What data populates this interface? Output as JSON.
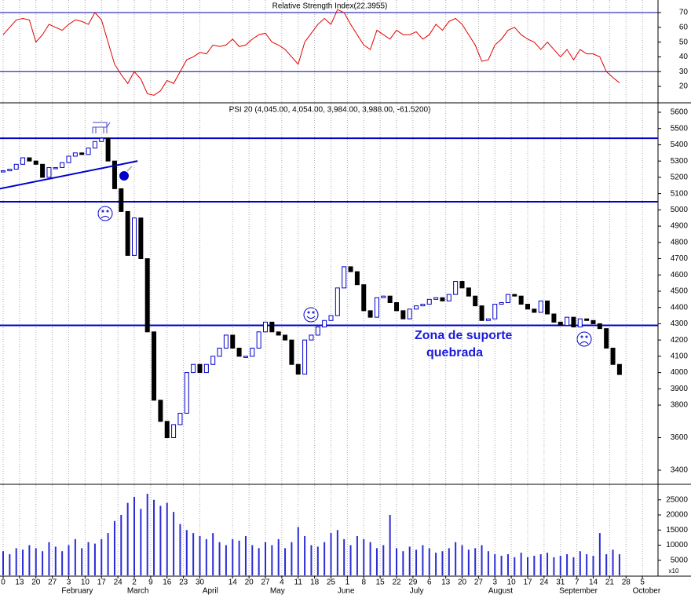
{
  "chart_data": [
    {
      "type": "line",
      "title": "Relative Strength Index(22.3955)",
      "color": "#e00000",
      "level_color": "#0000aa",
      "values": [
        55,
        60,
        65,
        66,
        65,
        50,
        55,
        62,
        60,
        58,
        62,
        65,
        64,
        62,
        70,
        65,
        50,
        35,
        28,
        22,
        30,
        25,
        15,
        14,
        17,
        24,
        22,
        30,
        38,
        40,
        43,
        42,
        48,
        47,
        48,
        52,
        47,
        48,
        52,
        55,
        56,
        50,
        48,
        45,
        40,
        35,
        50,
        56,
        62,
        66,
        62,
        72,
        70,
        62,
        55,
        48,
        45,
        58,
        55,
        52,
        58,
        55,
        55,
        57,
        52,
        55,
        62,
        58,
        64,
        66,
        62,
        55,
        48,
        37,
        38,
        48,
        52,
        58,
        60,
        55,
        52,
        50,
        45,
        50,
        45,
        40,
        45,
        38,
        45,
        42,
        42,
        40,
        30,
        26,
        22.3955
      ],
      "ylim": [
        9.4,
        78.5
      ],
      "yticks": [
        20,
        30,
        40,
        50,
        60,
        70
      ],
      "levels": [
        70,
        30
      ]
    },
    {
      "type": "candlestick",
      "title": "PSI 20 (4,045.00, 4,054.00, 3,984.00, 3,988.00, -61.5200)",
      "up_color": "#0000cc",
      "down_color": "#000000",
      "level_color": "#0000cc",
      "values": [
        5240,
        5250,
        5280,
        5320,
        5300,
        5280,
        5200,
        5260,
        5260,
        5290,
        5330,
        5350,
        5340,
        5380,
        5420,
        5440,
        5300,
        5130,
        4990,
        4720,
        4950,
        4700,
        4250,
        3830,
        3700,
        3600,
        3680,
        3750,
        4000,
        4050,
        4000,
        4050,
        4100,
        4150,
        4230,
        4150,
        4100,
        4100,
        4150,
        4250,
        4310,
        4250,
        4230,
        4200,
        4050,
        3990,
        4200,
        4230,
        4280,
        4320,
        4350,
        4520,
        4650,
        4620,
        4540,
        4380,
        4340,
        4460,
        4470,
        4430,
        4380,
        4330,
        4390,
        4410,
        4420,
        4450,
        4460,
        4440,
        4480,
        4560,
        4520,
        4470,
        4410,
        4320,
        4330,
        4420,
        4430,
        4480,
        4470,
        4420,
        4390,
        4370,
        4440,
        4360,
        4310,
        4290,
        4340,
        4280,
        4330,
        4320,
        4300,
        4270,
        4150,
        4050,
        3988
      ],
      "ylim": [
        3313,
        5653
      ],
      "yticks": [
        3400,
        3600,
        3800,
        3900,
        4000,
        4100,
        4200,
        4300,
        4400,
        4500,
        4600,
        4700,
        4800,
        4900,
        5000,
        5100,
        5200,
        5300,
        5400,
        5500,
        5600
      ],
      "levels": [
        5440,
        5050,
        4290
      ],
      "trendline": {
        "x": [
          -0.5,
          20.5
        ],
        "y": [
          5130,
          5300
        ]
      },
      "annotation": [
        "Zona de suporte",
        "quebrada"
      ]
    },
    {
      "type": "bar",
      "color": "#2b2bd6",
      "unit_label": "x10",
      "values": [
        8000,
        7000,
        9000,
        8500,
        10000,
        9000,
        8000,
        11000,
        9500,
        8000,
        10000,
        12000,
        9000,
        11000,
        10500,
        12000,
        14000,
        18000,
        20000,
        24000,
        26000,
        22000,
        27000,
        25000,
        23000,
        24000,
        21000,
        17000,
        15000,
        14000,
        13000,
        12000,
        14000,
        11000,
        10000,
        12000,
        11500,
        13000,
        10000,
        9000,
        11000,
        10000,
        12000,
        9000,
        11000,
        16000,
        13000,
        10000,
        9500,
        11000,
        14000,
        15000,
        12000,
        10000,
        13000,
        12000,
        11000,
        9000,
        10000,
        20000,
        9000,
        8000,
        9500,
        8500,
        10000,
        9000,
        7500,
        8000,
        9000,
        11000,
        10000,
        8500,
        9000,
        10000,
        8000,
        7000,
        6500,
        7000,
        6000,
        7500,
        6000,
        6500,
        7000,
        7500,
        6000,
        6500,
        7000,
        6000,
        8000,
        7000,
        6500,
        14000,
        7000,
        8500,
        7000
      ],
      "ylim": [
        0,
        29870
      ],
      "yticks": [
        5000,
        10000,
        15000,
        20000,
        25000
      ],
      "xticks": [
        {
          "value": 0,
          "label": "0"
        },
        {
          "value": 2.5,
          "label": "13"
        },
        {
          "value": 5,
          "label": "20"
        },
        {
          "value": 7.5,
          "label": "27"
        },
        {
          "value": 10,
          "label": "3"
        },
        {
          "value": 12.5,
          "label": "10"
        },
        {
          "value": 15,
          "label": "17"
        },
        {
          "value": 17.5,
          "label": "24"
        },
        {
          "value": 20,
          "label": "2"
        },
        {
          "value": 22.5,
          "label": "9"
        },
        {
          "value": 25,
          "label": "16"
        },
        {
          "value": 27.5,
          "label": "23"
        },
        {
          "value": 30,
          "label": "30"
        },
        {
          "value": 35,
          "label": "14"
        },
        {
          "value": 37.5,
          "label": "20"
        },
        {
          "value": 40,
          "label": "27"
        },
        {
          "value": 42.5,
          "label": "4"
        },
        {
          "value": 45,
          "label": "11"
        },
        {
          "value": 47.5,
          "label": "18"
        },
        {
          "value": 50,
          "label": "25"
        },
        {
          "value": 52.5,
          "label": "1"
        },
        {
          "value": 55,
          "label": "8"
        },
        {
          "value": 57.5,
          "label": "15"
        },
        {
          "value": 60,
          "label": "22"
        },
        {
          "value": 62.5,
          "label": "29"
        },
        {
          "value": 65,
          "label": "6"
        },
        {
          "value": 67.5,
          "label": "13"
        },
        {
          "value": 70,
          "label": "20"
        },
        {
          "value": 72.5,
          "label": "27"
        },
        {
          "value": 75,
          "label": "3"
        },
        {
          "value": 77.5,
          "label": "10"
        },
        {
          "value": 80,
          "label": "17"
        },
        {
          "value": 82.5,
          "label": "24"
        },
        {
          "value": 85,
          "label": "31"
        },
        {
          "value": 87.5,
          "label": "7"
        },
        {
          "value": 90,
          "label": "14"
        },
        {
          "value": 92.5,
          "label": "21"
        },
        {
          "value": 95,
          "label": "28"
        },
        {
          "value": 97.5,
          "label": "5"
        }
      ],
      "months": [
        {
          "value": 8.9,
          "label": "February"
        },
        {
          "value": 18.9,
          "label": "March"
        },
        {
          "value": 30.4,
          "label": "April"
        },
        {
          "value": 40.7,
          "label": "May"
        },
        {
          "value": 51,
          "label": "June"
        },
        {
          "value": 62,
          "label": "July"
        },
        {
          "value": 74,
          "label": "August"
        },
        {
          "value": 84.8,
          "label": "September"
        },
        {
          "value": 96,
          "label": "October"
        }
      ]
    }
  ]
}
